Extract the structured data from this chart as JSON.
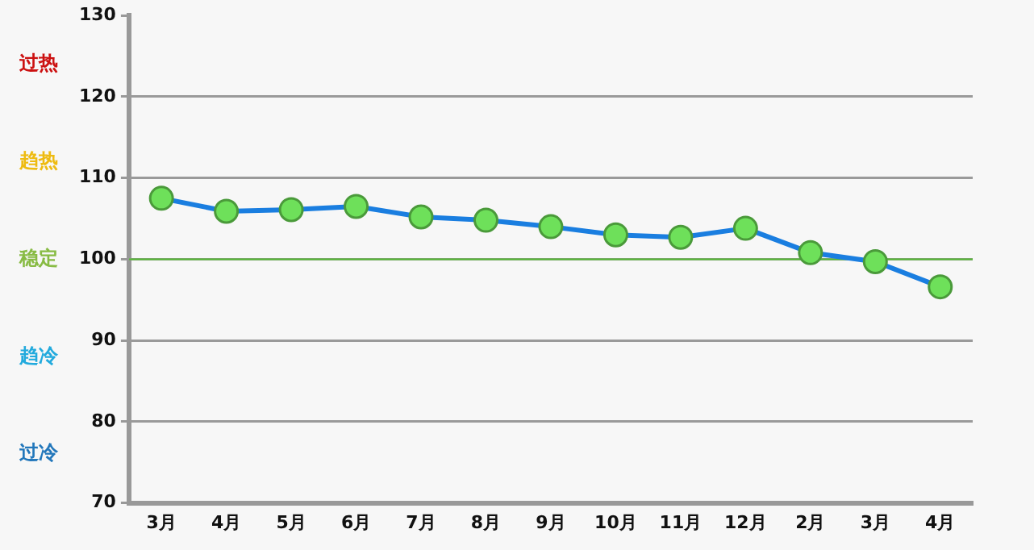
{
  "chart_data": {
    "type": "line",
    "categories": [
      "3月",
      "4月",
      "5月",
      "6月",
      "7月",
      "8月",
      "9月",
      "10月",
      "11月",
      "12月",
      "2月",
      "3月",
      "4月"
    ],
    "series": [
      {
        "color": "#1a7ee0",
        "values": [
          107.5,
          105.9,
          106.1,
          106.5,
          105.2,
          104.8,
          104.0,
          103.0,
          102.7,
          103.8,
          100.8,
          99.7,
          96.6
        ]
      }
    ],
    "ylim": [
      70,
      130
    ],
    "yticks": [
      70,
      80,
      90,
      100,
      110,
      120,
      130
    ],
    "grid": "y",
    "legend": false,
    "marker": "circle",
    "line_style": "solid",
    "ref_lines": [
      {
        "axis": "y",
        "value": 100,
        "color": "#55bb33"
      }
    ],
    "annotations": [
      "过热",
      "趋热",
      "稳定",
      "趋冷",
      "过冷"
    ]
  }
}
